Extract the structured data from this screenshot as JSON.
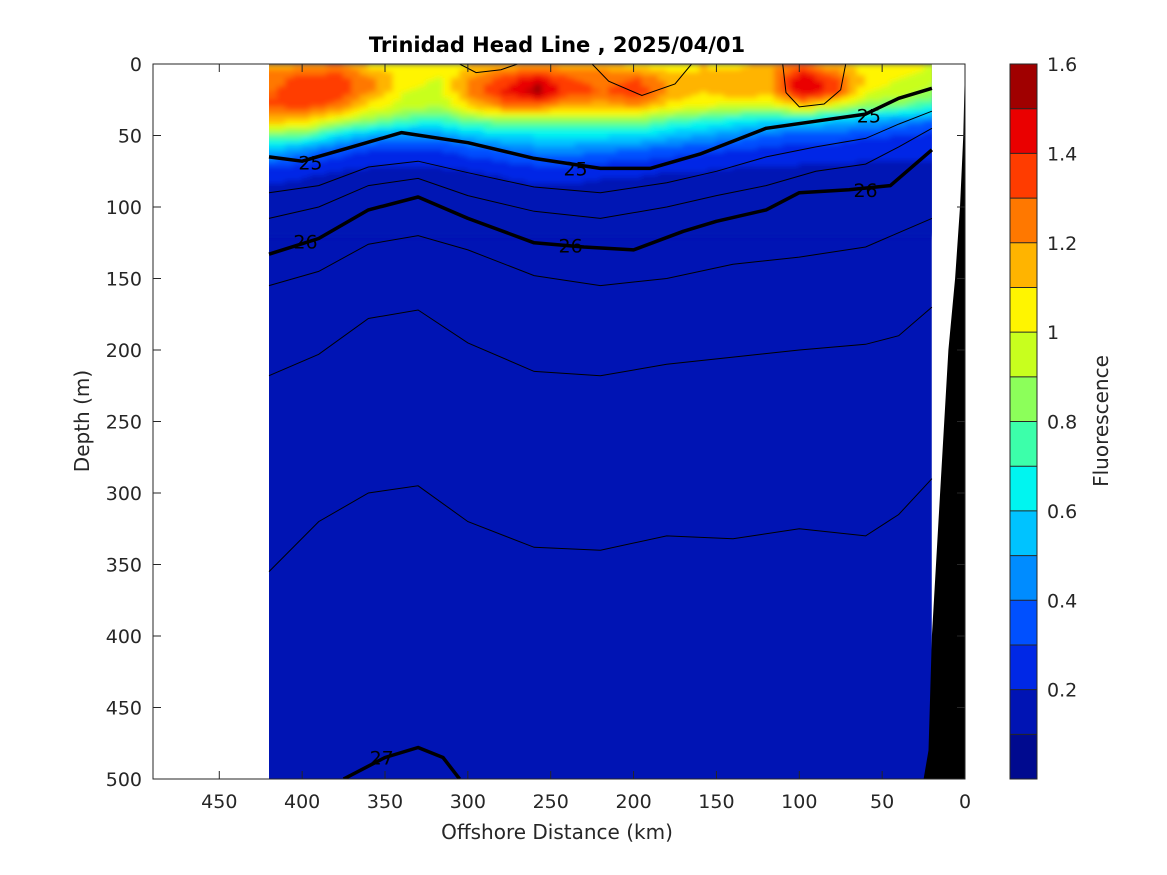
{
  "chart_data": {
    "type": "heatmap",
    "title": "Trinidad Head Line , 2025/04/01",
    "xlabel": "Offshore Distance (km)",
    "ylabel": "Depth (m)",
    "xlim": [
      490,
      0
    ],
    "ylim": [
      0,
      500
    ],
    "x_reversed": true,
    "y_reversed": true,
    "x_ticks": [
      450,
      400,
      350,
      300,
      250,
      200,
      150,
      100,
      50,
      0
    ],
    "y_ticks": [
      0,
      50,
      100,
      150,
      200,
      250,
      300,
      350,
      400,
      450,
      500
    ],
    "data_x_range": [
      420,
      20
    ],
    "colorbar": {
      "label": "Fluorescence",
      "range": [
        0,
        1.6
      ],
      "levels": [
        0,
        0.1,
        0.2,
        0.3,
        0.4,
        0.5,
        0.6,
        0.7,
        0.8,
        0.9,
        1.0,
        1.1,
        1.2,
        1.3,
        1.4,
        1.5,
        1.6
      ],
      "tick_values": [
        0.2,
        0.4,
        0.6,
        0.8,
        1,
        1.2,
        1.4,
        1.6
      ],
      "tick_labels": [
        "0.2",
        "0.4",
        "0.6",
        "0.8",
        "1",
        "1.2",
        "1.4",
        "1.6"
      ],
      "colors": [
        "#000a8f",
        "#0014b4",
        "#0028e6",
        "#0050ff",
        "#008cff",
        "#00c3ff",
        "#00f5f0",
        "#3cffaa",
        "#8cff5a",
        "#c8ff1e",
        "#fff500",
        "#ffb400",
        "#ff7800",
        "#ff3c00",
        "#ea0000",
        "#a00000"
      ]
    },
    "density_contours": [
      {
        "label": "25",
        "bold": true,
        "points": [
          [
            420,
            65
          ],
          [
            400,
            68
          ],
          [
            370,
            58
          ],
          [
            340,
            48
          ],
          [
            300,
            55
          ],
          [
            260,
            66
          ],
          [
            220,
            73
          ],
          [
            190,
            73
          ],
          [
            160,
            63
          ],
          [
            120,
            45
          ],
          [
            90,
            40
          ],
          [
            60,
            35
          ],
          [
            40,
            24
          ],
          [
            20,
            17
          ]
        ],
        "label_positions": [
          [
            395,
            69
          ],
          [
            235,
            73
          ],
          [
            58,
            36
          ]
        ]
      },
      {
        "label": "26",
        "bold": true,
        "points": [
          [
            420,
            133
          ],
          [
            390,
            122
          ],
          [
            360,
            102
          ],
          [
            330,
            93
          ],
          [
            300,
            108
          ],
          [
            260,
            125
          ],
          [
            230,
            128
          ],
          [
            200,
            130
          ],
          [
            170,
            117
          ],
          [
            150,
            110
          ],
          [
            120,
            102
          ],
          [
            100,
            90
          ],
          [
            70,
            88
          ],
          [
            45,
            85
          ],
          [
            20,
            60
          ]
        ],
        "label_positions": [
          [
            398,
            124
          ],
          [
            238,
            127
          ],
          [
            60,
            88
          ]
        ]
      },
      {
        "label": "27",
        "bold": true,
        "points": [
          [
            375,
            500
          ],
          [
            350,
            485
          ],
          [
            330,
            478
          ],
          [
            315,
            485
          ],
          [
            305,
            500
          ]
        ],
        "label_positions": [
          [
            352,
            485
          ]
        ]
      }
    ],
    "fluorescence_rows": [
      {
        "depth": 0,
        "values": [
          [
            420,
            1.15
          ],
          [
            400,
            1.15
          ],
          [
            380,
            1.2
          ],
          [
            360,
            1.05
          ],
          [
            340,
            1.05
          ],
          [
            320,
            1.0
          ],
          [
            300,
            1.1
          ],
          [
            280,
            1.1
          ],
          [
            260,
            1.15
          ],
          [
            240,
            1.1
          ],
          [
            220,
            1.15
          ],
          [
            200,
            1.05
          ],
          [
            180,
            1.0
          ],
          [
            160,
            1.1
          ],
          [
            140,
            1.05
          ],
          [
            120,
            1.15
          ],
          [
            100,
            1.25
          ],
          [
            80,
            1.1
          ],
          [
            60,
            1.05
          ],
          [
            40,
            1.05
          ],
          [
            20,
            1.0
          ]
        ]
      },
      {
        "depth": 10,
        "values": [
          [
            420,
            1.25
          ],
          [
            400,
            1.35
          ],
          [
            380,
            1.35
          ],
          [
            360,
            1.2
          ],
          [
            340,
            1.05
          ],
          [
            320,
            1.0
          ],
          [
            300,
            1.2
          ],
          [
            280,
            1.35
          ],
          [
            260,
            1.45
          ],
          [
            240,
            1.3
          ],
          [
            220,
            1.25
          ],
          [
            200,
            1.3
          ],
          [
            180,
            1.15
          ],
          [
            160,
            1.1
          ],
          [
            140,
            1.15
          ],
          [
            120,
            1.2
          ],
          [
            100,
            1.48
          ],
          [
            80,
            1.3
          ],
          [
            60,
            1.05
          ],
          [
            40,
            1.0
          ],
          [
            20,
            0.95
          ]
        ]
      },
      {
        "depth": 20,
        "values": [
          [
            420,
            1.3
          ],
          [
            400,
            1.4
          ],
          [
            380,
            1.35
          ],
          [
            360,
            1.2
          ],
          [
            340,
            1.0
          ],
          [
            320,
            0.95
          ],
          [
            300,
            1.25
          ],
          [
            280,
            1.42
          ],
          [
            260,
            1.55
          ],
          [
            240,
            1.35
          ],
          [
            220,
            1.3
          ],
          [
            200,
            1.38
          ],
          [
            180,
            1.2
          ],
          [
            160,
            1.1
          ],
          [
            140,
            1.2
          ],
          [
            120,
            1.15
          ],
          [
            100,
            1.5
          ],
          [
            80,
            1.35
          ],
          [
            60,
            1.0
          ],
          [
            40,
            0.95
          ],
          [
            20,
            0.85
          ]
        ]
      },
      {
        "depth": 30,
        "values": [
          [
            420,
            1.3
          ],
          [
            400,
            1.35
          ],
          [
            380,
            1.25
          ],
          [
            360,
            1.05
          ],
          [
            340,
            0.95
          ],
          [
            320,
            0.9
          ],
          [
            300,
            1.1
          ],
          [
            280,
            1.25
          ],
          [
            260,
            1.25
          ],
          [
            240,
            1.15
          ],
          [
            220,
            1.15
          ],
          [
            200,
            1.2
          ],
          [
            180,
            1.05
          ],
          [
            160,
            1.0
          ],
          [
            140,
            0.95
          ],
          [
            120,
            0.95
          ],
          [
            100,
            1.1
          ],
          [
            80,
            0.95
          ],
          [
            60,
            0.85
          ],
          [
            40,
            0.8
          ],
          [
            20,
            0.7
          ]
        ]
      },
      {
        "depth": 40,
        "values": [
          [
            420,
            1.15
          ],
          [
            400,
            1.1
          ],
          [
            380,
            0.95
          ],
          [
            360,
            0.85
          ],
          [
            340,
            0.75
          ],
          [
            320,
            0.7
          ],
          [
            300,
            0.8
          ],
          [
            280,
            0.85
          ],
          [
            260,
            0.85
          ],
          [
            240,
            0.85
          ],
          [
            220,
            0.85
          ],
          [
            200,
            0.85
          ],
          [
            180,
            0.75
          ],
          [
            160,
            0.7
          ],
          [
            140,
            0.65
          ],
          [
            120,
            0.6
          ],
          [
            100,
            0.6
          ],
          [
            80,
            0.55
          ],
          [
            60,
            0.5
          ],
          [
            40,
            0.45
          ],
          [
            20,
            0.4
          ]
        ]
      },
      {
        "depth": 50,
        "values": [
          [
            420,
            0.8
          ],
          [
            400,
            0.8
          ],
          [
            380,
            0.6
          ],
          [
            360,
            0.5
          ],
          [
            340,
            0.45
          ],
          [
            320,
            0.45
          ],
          [
            300,
            0.55
          ],
          [
            280,
            0.6
          ],
          [
            260,
            0.62
          ],
          [
            240,
            0.62
          ],
          [
            220,
            0.62
          ],
          [
            200,
            0.62
          ],
          [
            180,
            0.55
          ],
          [
            160,
            0.5
          ],
          [
            140,
            0.45
          ],
          [
            120,
            0.4
          ],
          [
            100,
            0.35
          ],
          [
            80,
            0.35
          ],
          [
            60,
            0.32
          ],
          [
            40,
            0.3
          ],
          [
            20,
            0.28
          ]
        ]
      },
      {
        "depth": 60,
        "values": [
          [
            420,
            0.55
          ],
          [
            400,
            0.45
          ],
          [
            380,
            0.35
          ],
          [
            360,
            0.3
          ],
          [
            340,
            0.3
          ],
          [
            320,
            0.3
          ],
          [
            300,
            0.35
          ],
          [
            280,
            0.4
          ],
          [
            260,
            0.45
          ],
          [
            240,
            0.45
          ],
          [
            220,
            0.42
          ],
          [
            200,
            0.4
          ],
          [
            180,
            0.35
          ],
          [
            160,
            0.32
          ],
          [
            140,
            0.3
          ],
          [
            120,
            0.28
          ],
          [
            100,
            0.25
          ],
          [
            80,
            0.25
          ],
          [
            60,
            0.22
          ],
          [
            40,
            0.22
          ],
          [
            20,
            0.22
          ]
        ]
      },
      {
        "depth": 75,
        "values": [
          [
            420,
            0.25
          ],
          [
            400,
            0.22
          ],
          [
            380,
            0.2
          ],
          [
            360,
            0.18
          ],
          [
            340,
            0.18
          ],
          [
            320,
            0.18
          ],
          [
            300,
            0.2
          ],
          [
            280,
            0.22
          ],
          [
            260,
            0.25
          ],
          [
            240,
            0.25
          ],
          [
            220,
            0.22
          ],
          [
            200,
            0.22
          ],
          [
            180,
            0.2
          ],
          [
            160,
            0.2
          ],
          [
            140,
            0.18
          ],
          [
            120,
            0.18
          ],
          [
            100,
            0.18
          ],
          [
            80,
            0.18
          ],
          [
            60,
            0.18
          ],
          [
            40,
            0.18
          ],
          [
            20,
            0.18
          ]
        ]
      },
      {
        "depth": 100,
        "values": [
          [
            420,
            0.12
          ],
          [
            400,
            0.12
          ],
          [
            380,
            0.11
          ],
          [
            360,
            0.11
          ],
          [
            340,
            0.11
          ],
          [
            320,
            0.11
          ],
          [
            300,
            0.11
          ],
          [
            280,
            0.12
          ],
          [
            260,
            0.12
          ],
          [
            240,
            0.12
          ],
          [
            220,
            0.12
          ],
          [
            200,
            0.12
          ],
          [
            180,
            0.11
          ],
          [
            160,
            0.11
          ],
          [
            140,
            0.11
          ],
          [
            120,
            0.11
          ],
          [
            100,
            0.11
          ],
          [
            80,
            0.11
          ],
          [
            60,
            0.11
          ],
          [
            40,
            0.11
          ],
          [
            20,
            0.11
          ]
        ]
      },
      {
        "depth": 150,
        "values": [
          [
            420,
            0.1
          ],
          [
            20,
            0.1
          ]
        ]
      },
      {
        "depth": 500,
        "values": [
          [
            420,
            0.1
          ],
          [
            20,
            0.1
          ]
        ]
      }
    ],
    "bathymetry": [
      [
        25,
        500
      ],
      [
        22,
        480
      ],
      [
        20,
        400
      ],
      [
        15,
        300
      ],
      [
        10,
        200
      ],
      [
        6,
        150
      ],
      [
        3,
        100
      ],
      [
        1,
        50
      ],
      [
        0,
        0
      ],
      [
        0,
        500
      ]
    ]
  }
}
